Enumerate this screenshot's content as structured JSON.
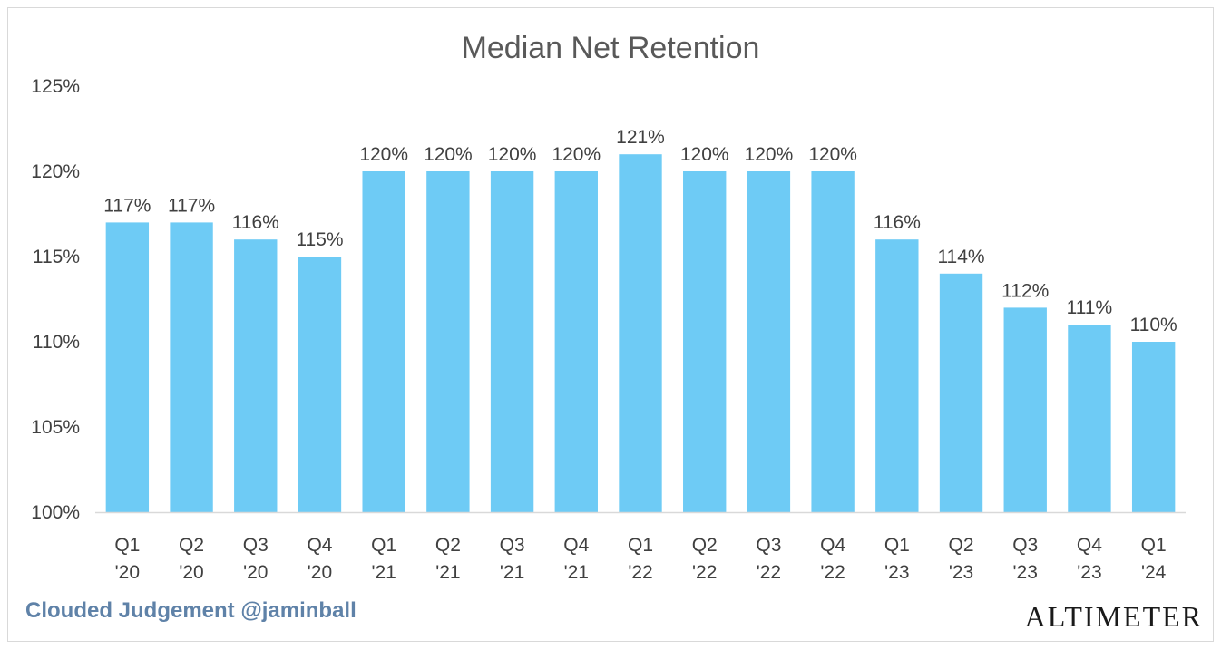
{
  "chart_data": {
    "type": "bar",
    "title": "Median Net Retention",
    "categories": [
      [
        "Q1",
        "'20"
      ],
      [
        "Q2",
        "'20"
      ],
      [
        "Q3",
        "'20"
      ],
      [
        "Q4",
        "'20"
      ],
      [
        "Q1",
        "'21"
      ],
      [
        "Q2",
        "'21"
      ],
      [
        "Q3",
        "'21"
      ],
      [
        "Q4",
        "'21"
      ],
      [
        "Q1",
        "'22"
      ],
      [
        "Q2",
        "'22"
      ],
      [
        "Q3",
        "'22"
      ],
      [
        "Q4",
        "'22"
      ],
      [
        "Q1",
        "'23"
      ],
      [
        "Q2",
        "'23"
      ],
      [
        "Q3",
        "'23"
      ],
      [
        "Q4",
        "'23"
      ],
      [
        "Q1",
        "'24"
      ]
    ],
    "values": [
      117,
      117,
      116,
      115,
      120,
      120,
      120,
      120,
      121,
      120,
      120,
      120,
      116,
      114,
      112,
      111,
      110
    ],
    "data_labels": [
      "117%",
      "117%",
      "116%",
      "115%",
      "120%",
      "120%",
      "120%",
      "120%",
      "121%",
      "120%",
      "120%",
      "120%",
      "116%",
      "114%",
      "112%",
      "111%",
      "110%"
    ],
    "ylim": [
      100,
      125
    ],
    "yticks": [
      100,
      105,
      110,
      115,
      120,
      125
    ],
    "ytick_labels": [
      "100%",
      "105%",
      "110%",
      "115%",
      "120%",
      "125%"
    ],
    "grid": false,
    "bar_color": "#6ecbf5"
  },
  "footer": {
    "left_text": "Clouded Judgement @jaminball",
    "right_text": "ALTIMETER"
  }
}
